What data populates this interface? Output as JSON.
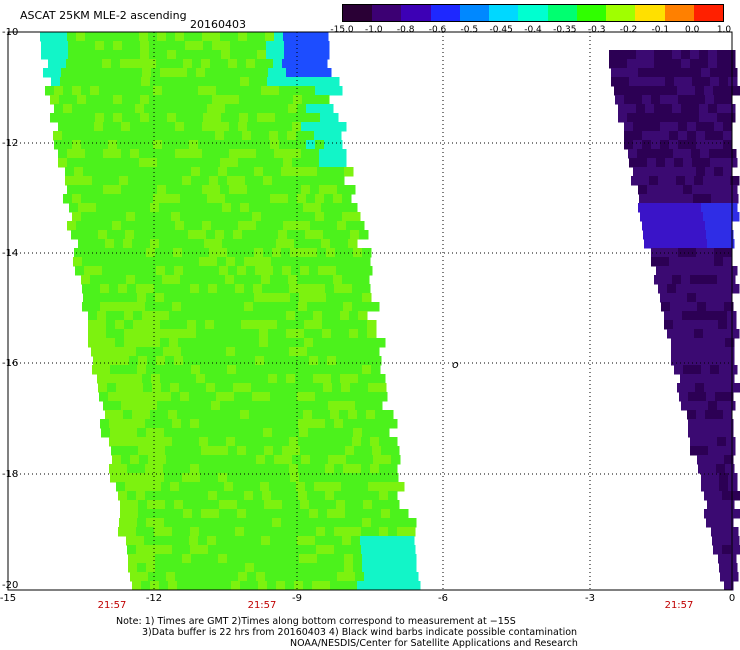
{
  "header": {
    "title": "ASCAT 25KM MLE-2 ascending",
    "date": "20160403"
  },
  "colorbar": {
    "labels": [
      "-15.0",
      "-1.0",
      "-0.8",
      "-0.6",
      "-0.5",
      "-0.45",
      "-0.4",
      "-0.35",
      "-0.3",
      "-0.2",
      "-0.1",
      "0.0",
      "1.0"
    ],
    "colors": [
      "#2a0035",
      "#3c0073",
      "#3d00b5",
      "#1e28ff",
      "#0088ff",
      "#00d8ff",
      "#00ffd0",
      "#00ff70",
      "#30ff00",
      "#a0ff00",
      "#ffe000",
      "#ff8000",
      "#ff2000"
    ]
  },
  "map": {
    "lat_labels": [
      "-10",
      "-12",
      "-14",
      "-16",
      "-18",
      "-20"
    ],
    "lon_labels": [
      "-15",
      "-12",
      "-9",
      "-6",
      "-3",
      "0"
    ],
    "times": [
      "21:57",
      "21:57",
      "21:57"
    ],
    "marker": "o",
    "colors": {
      "swath_left_main": "#4cf21c",
      "swath_left_light": "#7df20f",
      "swath_left_cyan": "#12f5c8",
      "swath_left_blue": "#1d4dff",
      "swath_right_main": "#3b0a72",
      "swath_right_dark": "#2c0054",
      "swath_right_blue": "#2f2de6",
      "grid": "#000000",
      "time_text": "#c00000"
    }
  },
  "notes": {
    "line1": "Note: 1) Times are GMT 2)Times along bottom correspond to measurement at −15S",
    "line2": "3)Data buffer is 22 hrs from 20160403 4) Black wind barbs indicate possible contamination",
    "line3": "NOAA/NESDIS/Center for Satellite Applications and Research"
  }
}
